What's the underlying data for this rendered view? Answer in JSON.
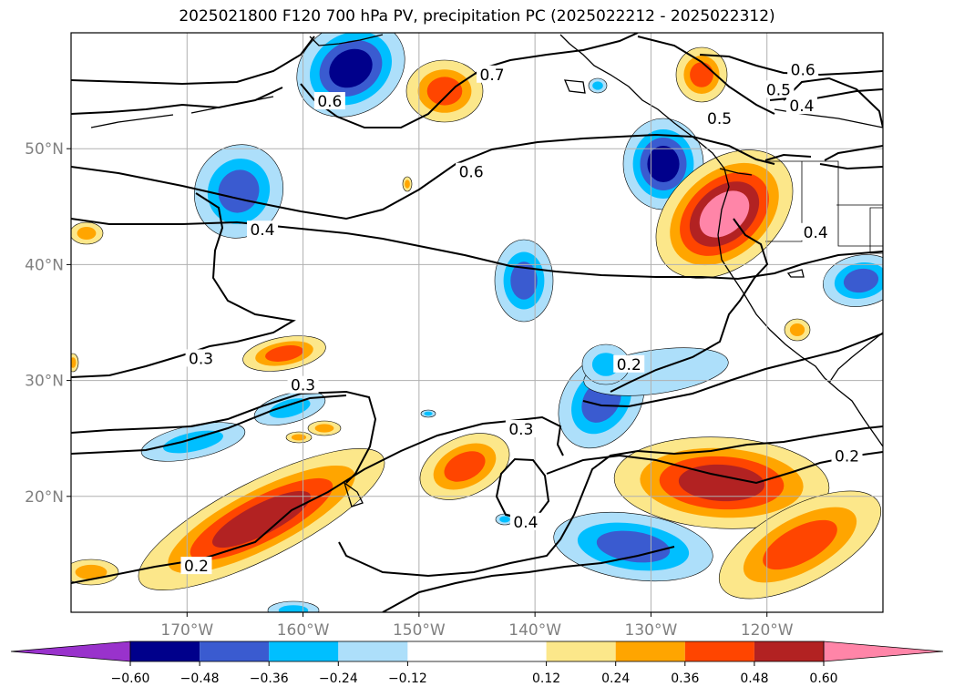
{
  "chart_data": {
    "type": "heatmap",
    "title": "2025021800 F120 700 hPa PV, precipitation PC (2025022212 - 2025022312)",
    "lon_range": [
      -180,
      -110
    ],
    "lat_range": [
      10,
      60
    ],
    "x_ticks": [
      {
        "lon": -170,
        "label": "170°W"
      },
      {
        "lon": -160,
        "label": "160°W"
      },
      {
        "lon": -150,
        "label": "150°W"
      },
      {
        "lon": -140,
        "label": "140°W"
      },
      {
        "lon": -130,
        "label": "130°W"
      },
      {
        "lon": -120,
        "label": "120°W"
      }
    ],
    "y_ticks": [
      {
        "lat": 20,
        "label": "20°N"
      },
      {
        "lat": 30,
        "label": "30°N"
      },
      {
        "lat": 40,
        "label": "40°N"
      },
      {
        "lat": 50,
        "label": "50°N"
      }
    ],
    "grid": true,
    "colorbar": {
      "orientation": "horizontal",
      "extend": "both",
      "levels": [
        -0.6,
        -0.48,
        -0.36,
        -0.24,
        -0.12,
        0.12,
        0.24,
        0.36,
        0.48,
        0.6
      ],
      "tick_labels": [
        "−0.60",
        "−0.48",
        "−0.36",
        "−0.24",
        "−0.12",
        "0.12",
        "0.24",
        "0.36",
        "0.48",
        "0.60"
      ],
      "colors": [
        "#9932CC",
        "#00008B",
        "#3A5BD0",
        "#00BFFF",
        "#ADDFFA",
        "#FFFFFF",
        "#FCE78A",
        "#FFA500",
        "#FF4500",
        "#B22222",
        "#FF85A8"
      ]
    },
    "contour_labels": [
      {
        "text": "0.6",
        "lon": -157.7,
        "lat": 54.1
      },
      {
        "text": "0.7",
        "lon": -143.7,
        "lat": 56.4
      },
      {
        "text": "0.6",
        "lon": -116.9,
        "lat": 56.8
      },
      {
        "text": "0.5",
        "lon": -119.0,
        "lat": 55.1
      },
      {
        "text": "0.5",
        "lon": -124.1,
        "lat": 52.6
      },
      {
        "text": "0.4",
        "lon": -117.0,
        "lat": 53.7
      },
      {
        "text": "0.6",
        "lon": -145.5,
        "lat": 48.0
      },
      {
        "text": "0.4",
        "lon": -163.5,
        "lat": 43.0
      },
      {
        "text": "0.4",
        "lon": -115.8,
        "lat": 42.8
      },
      {
        "text": "0.3",
        "lon": -168.8,
        "lat": 31.9
      },
      {
        "text": "0.3",
        "lon": -160.0,
        "lat": 29.6
      },
      {
        "text": "0.3",
        "lon": -141.2,
        "lat": 25.8
      },
      {
        "text": "0.2",
        "lon": -131.9,
        "lat": 31.4
      },
      {
        "text": "0.2",
        "lon": -113.1,
        "lat": 23.5
      },
      {
        "text": "0.4",
        "lon": -140.8,
        "lat": 17.8
      },
      {
        "text": "0.2",
        "lon": -169.2,
        "lat": 14.0
      }
    ]
  }
}
